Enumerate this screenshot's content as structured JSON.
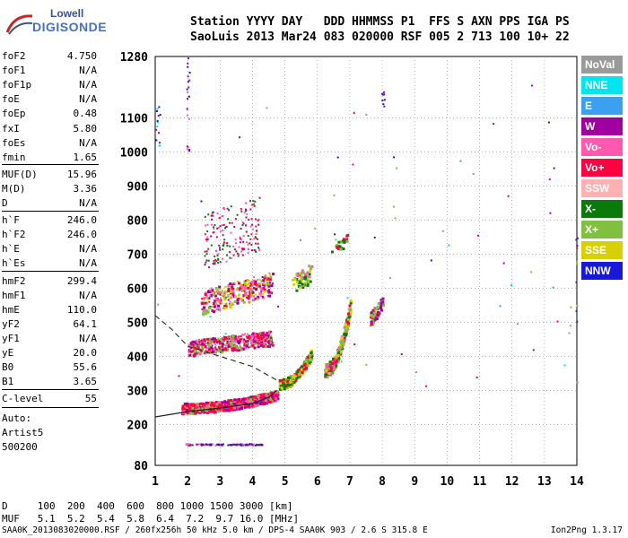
{
  "logo": {
    "line1": "Lowell",
    "line2": "DIGISONDE"
  },
  "header": {
    "line1": "Station YYYY DAY   DDD HHMMSS P1  FFS S AXN PPS IGA PS",
    "line2": "SaoLuis 2013 Mar24 083 020000 RSF 005 2 713 100 10+ 22"
  },
  "params": [
    {
      "k": "foF2",
      "v": "4.750"
    },
    {
      "k": "foF1",
      "v": "N/A"
    },
    {
      "k": "foF1p",
      "v": "N/A"
    },
    {
      "k": "foE",
      "v": "N/A"
    },
    {
      "k": "foEp",
      "v": "0.48"
    },
    {
      "k": "fxI",
      "v": "5.80"
    },
    {
      "k": "foEs",
      "v": "N/A"
    },
    {
      "k": "fmin",
      "v": "1.65"
    },
    {
      "k": "MUF(D)",
      "v": "15.96"
    },
    {
      "k": "M(D)",
      "v": "3.36"
    },
    {
      "k": "D",
      "v": "N/A"
    },
    {
      "k": "h`F",
      "v": "246.0"
    },
    {
      "k": "h`F2",
      "v": "246.0"
    },
    {
      "k": "h`E",
      "v": "N/A"
    },
    {
      "k": "h`Es",
      "v": "N/A"
    },
    {
      "k": "hmF2",
      "v": "299.4"
    },
    {
      "k": "hmF1",
      "v": "N/A"
    },
    {
      "k": "hmE",
      "v": "110.0"
    },
    {
      "k": "yF2",
      "v": "64.1"
    },
    {
      "k": "yF1",
      "v": "N/A"
    },
    {
      "k": "yE",
      "v": "20.0"
    },
    {
      "k": "B0",
      "v": "55.6"
    },
    {
      "k": "B1",
      "v": "3.65"
    },
    {
      "k": "C-level",
      "v": "55"
    }
  ],
  "auto": [
    "Auto:",
    "Artist5",
    "500200"
  ],
  "legend": [
    {
      "label": "NoVal",
      "color": "#9a9a9a"
    },
    {
      "label": "NNE",
      "color": "#00e5ee"
    },
    {
      "label": "E",
      "color": "#3aa0ef"
    },
    {
      "label": "W",
      "color": "#a000a0"
    },
    {
      "label": "Vo-",
      "color": "#ff59b0"
    },
    {
      "label": "Vo+",
      "color": "#ff0040"
    },
    {
      "label": "SSW",
      "color": "#ffb0b0"
    },
    {
      "label": "X-",
      "color": "#0a7a0a"
    },
    {
      "label": "X+",
      "color": "#80c040"
    },
    {
      "label": "SSE",
      "color": "#d8d000"
    },
    {
      "label": "NNW",
      "color": "#1818d8"
    }
  ],
  "footer": {
    "line1": "D     100  200  400  600  800 1000 1500 3000 [km]",
    "line2": "MUF   5.1  5.2  5.4  5.8  6.4  7.2  9.7 16.0 [MHz]",
    "file": "SAA0K_2013083020000.RSF / 260fx256h 50 kHz 5.0 km / DPS-4 SAA0K 903 / 2.6 S 315.8 E",
    "version": "Ion2Png 1.3.17"
  },
  "chart_data": {
    "type": "scatter",
    "title": "",
    "xlabel": "",
    "ylabel": "",
    "xlim": [
      1,
      14
    ],
    "ylim": [
      80,
      1280
    ],
    "xticks": [
      1,
      2,
      3,
      4,
      5,
      6,
      7,
      8,
      9,
      10,
      11,
      12,
      13,
      14
    ],
    "yticks": [
      80,
      200,
      300,
      400,
      500,
      600,
      700,
      800,
      900,
      1000,
      1100,
      1280
    ],
    "grid": true,
    "description_series": [
      {
        "name": "O-trace F2",
        "freq_range": [
          1.8,
          4.75
        ],
        "height_range": [
          250,
          310
        ]
      },
      {
        "name": "2nd hop",
        "freq_range": [
          2.0,
          4.5
        ],
        "height_range": [
          420,
          470
        ]
      },
      {
        "name": "3rd hop",
        "freq_range": [
          2.5,
          4.5
        ],
        "height_range": [
          560,
          650
        ]
      },
      {
        "name": "X-trace",
        "freq_range": [
          4.8,
          7.2
        ],
        "height_range": [
          320,
          620
        ]
      },
      {
        "name": "sporadic low",
        "freq_range": [
          1.9,
          4.3
        ],
        "height_range": [
          140,
          145
        ]
      }
    ],
    "profile_curve": [
      [
        1.0,
        222
      ],
      [
        2.0,
        238
      ],
      [
        3.0,
        248
      ],
      [
        4.0,
        262
      ],
      [
        4.5,
        280
      ],
      [
        4.75,
        300
      ]
    ],
    "dashed_curve": [
      [
        1.0,
        520
      ],
      [
        1.5,
        480
      ],
      [
        2.0,
        430
      ],
      [
        3.0,
        400
      ],
      [
        4.0,
        370
      ],
      [
        4.75,
        330
      ]
    ]
  }
}
